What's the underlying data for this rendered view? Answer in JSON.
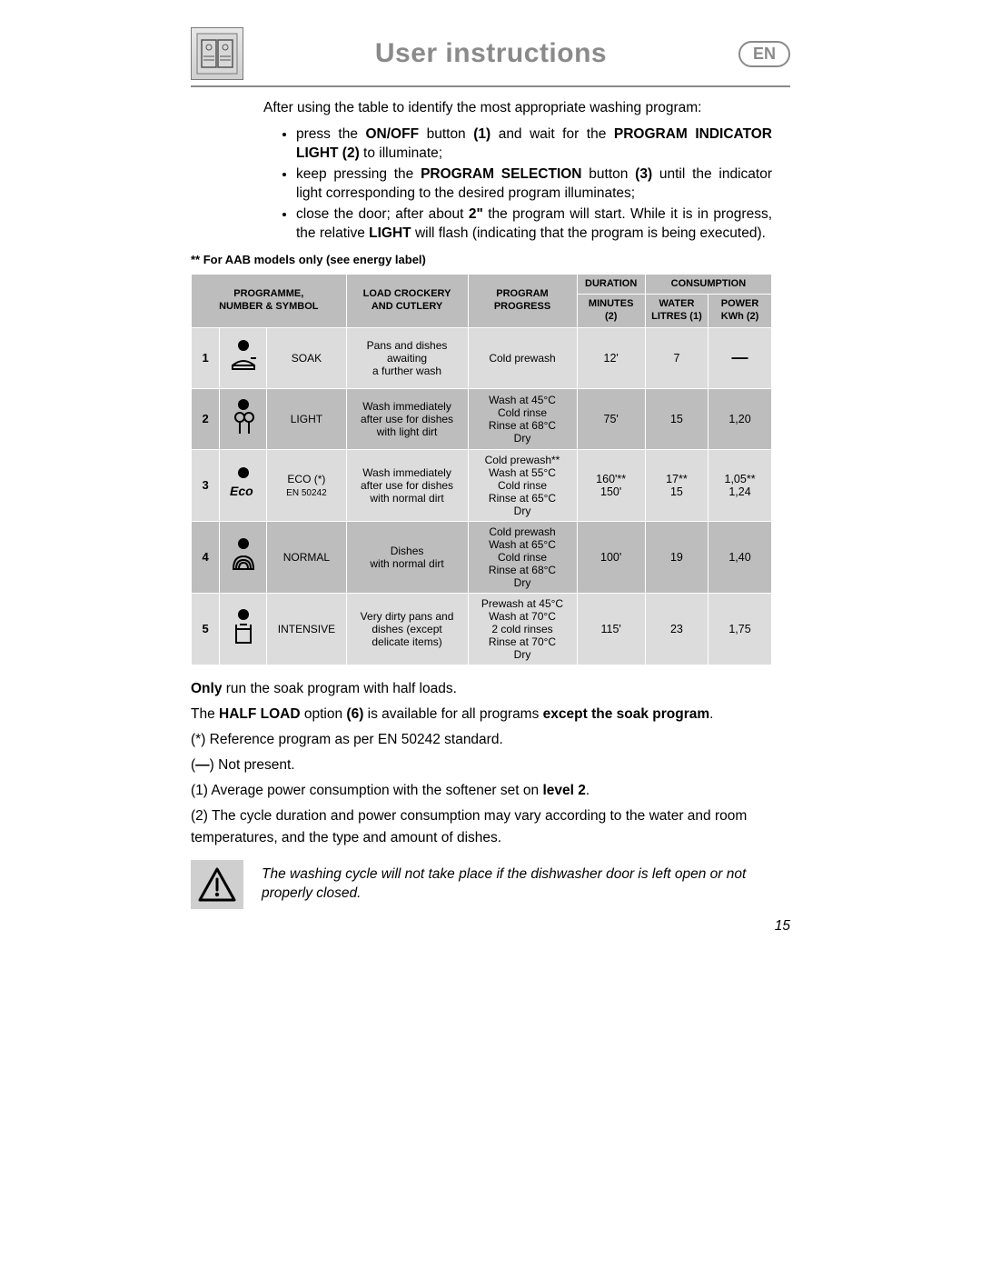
{
  "header": {
    "title": "User instructions",
    "lang": "EN"
  },
  "intro": "After using the table to identify the most appropriate washing program:",
  "bullets": [
    "press the <b>ON/OFF</b> button <b>(1)</b> and wait for the <b>PROGRAM INDICATOR LIGHT (2)</b> to illuminate;",
    "keep pressing the <b>PROGRAM SELECTION</b> button <b>(3)</b> until the indicator light corresponding to the desired program illuminates;",
    "close the door; after about <b>2\"</b> the program will start. While it is in progress, the relative <b>LIGHT</b> will flash (indicating that the program is being executed)."
  ],
  "aab_note": "** For AAB models only (see energy label)",
  "table": {
    "headers": {
      "programme": "PROGRAMME,<br>NUMBER & SYMBOL",
      "load": "LOAD CROCKERY<br>AND CUTLERY",
      "progress": "PROGRAM<br>PROGRESS",
      "duration_group": "DURATION",
      "consumption_group": "CONSUMPTION",
      "minutes": "MINUTES<br>(2)",
      "water": "WATER<br>LITRES (1)",
      "power": "POWER<br>KWh (2)"
    },
    "rows": [
      {
        "num": "1",
        "name": "SOAK",
        "name_sub": "",
        "load": "Pans and dishes<br>awaiting<br>a further wash",
        "progress": "Cold prewash",
        "minutes": "12'",
        "water": "7",
        "power": "—",
        "symbol": "soak"
      },
      {
        "num": "2",
        "name": "LIGHT",
        "name_sub": "",
        "load": "Wash immediately<br>after use for dishes<br>with light dirt",
        "progress": "Wash at 45°C<br>Cold rinse<br>Rinse at 68°C<br>Dry",
        "minutes": "75'",
        "water": "15",
        "power": "1,20",
        "symbol": "light"
      },
      {
        "num": "3",
        "name": "ECO (*)",
        "name_sub": "EN 50242",
        "load": "Wash immediately<br>after use for dishes<br>with normal dirt",
        "progress": "Cold prewash**<br>Wash at 55°C<br>Cold rinse<br>Rinse at 65°C<br>Dry",
        "minutes": "160'**<br>150'",
        "water": "17**<br>15",
        "power": "1,05**<br>1,24",
        "symbol": "eco"
      },
      {
        "num": "4",
        "name": "NORMAL",
        "name_sub": "",
        "load": "Dishes<br>with normal dirt",
        "progress": "Cold prewash<br>Wash at 65°C<br>Cold rinse<br>Rinse at 68°C<br>Dry",
        "minutes": "100'",
        "water": "19",
        "power": "1,40",
        "symbol": "normal"
      },
      {
        "num": "5",
        "name": "INTENSIVE",
        "name_sub": "",
        "load": "Very dirty pans and<br>dishes (except<br>delicate items)",
        "progress": "Prewash at 45°C<br>Wash at 70°C<br>2 cold rinses<br>Rinse at 70°C<br>Dry",
        "minutes": "115'",
        "water": "23",
        "power": "1,75",
        "symbol": "intensive"
      }
    ]
  },
  "notes": [
    "<b>Only</b> run the soak program with half loads.",
    "The <b>HALF LOAD</b> option <b>(6)</b> is available for all programs <b>except the soak program</b>.",
    "(*) Reference program as per EN 50242 standard.",
    "(<b>—</b>) Not present.",
    "(1)  Average power consumption with the softener set on <b>level 2</b>.",
    "(2) The cycle duration and power consumption may vary according to the water and room temperatures, and the type and amount of dishes."
  ],
  "warning": "The washing cycle will not take place if the dishwasher door is left open or not properly closed.",
  "page_number": "15",
  "colors": {
    "header_grey": "#8a8a8a",
    "row_light": "#dcdcdc",
    "row_dark": "#bdbdbd"
  }
}
